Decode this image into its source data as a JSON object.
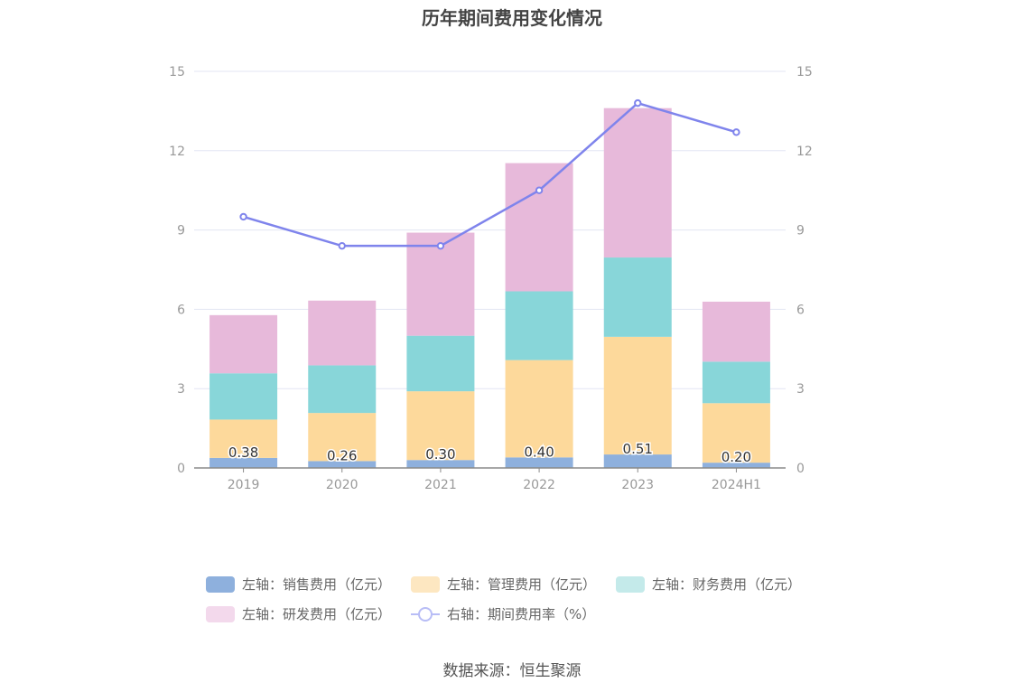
{
  "title": "历年期间费用变化情况",
  "source": "数据来源：恒生聚源",
  "legend": [
    {
      "label": "左轴：销售费用（亿元）",
      "color": "#8eb0dd",
      "kind": "bar"
    },
    {
      "label": "左轴：管理费用（亿元）",
      "color": "#fde7c1",
      "kind": "bar"
    },
    {
      "label": "左轴：财务费用（亿元）",
      "color": "#c4eaea",
      "kind": "bar"
    },
    {
      "label": "左轴：研发费用（亿元）",
      "color": "#f3d9ec",
      "kind": "bar"
    },
    {
      "label": "右轴：期间费用率（%）",
      "color": "#b8bdf6",
      "kind": "line"
    }
  ],
  "chart_data": {
    "type": "bar",
    "stacked": true,
    "categories": [
      "2019",
      "2020",
      "2021",
      "2022",
      "2023",
      "2024H1"
    ],
    "series": [
      {
        "name": "左轴：销售费用（亿元）",
        "color": "#8eb0dd",
        "axis": "left",
        "values": [
          0.38,
          0.26,
          0.3,
          0.4,
          0.51,
          0.2
        ],
        "labels": [
          "0.38",
          "0.26",
          "0.30",
          "0.40",
          "0.51",
          "0.20"
        ]
      },
      {
        "name": "左轴：管理费用（亿元）",
        "color": "#fdd99b",
        "axis": "left",
        "values": [
          1.45,
          1.82,
          2.6,
          3.68,
          4.45,
          2.25
        ]
      },
      {
        "name": "左轴：财务费用（亿元）",
        "color": "#88d6d9",
        "axis": "left",
        "values": [
          1.75,
          1.8,
          2.1,
          2.6,
          3.0,
          1.57
        ]
      },
      {
        "name": "左轴：研发费用（亿元）",
        "color": "#e7b9da",
        "axis": "left",
        "values": [
          2.2,
          2.45,
          3.9,
          4.85,
          5.65,
          2.27
        ]
      },
      {
        "name": "右轴：期间费用率（%）",
        "color": "#7f84ec",
        "axis": "right",
        "type": "line",
        "values": [
          9.5,
          8.4,
          8.4,
          10.5,
          13.8,
          12.7
        ]
      }
    ],
    "y_left": {
      "min": 0,
      "max": 15,
      "ticks": [
        "0",
        "3",
        "6",
        "9",
        "12",
        "15"
      ]
    },
    "y_right": {
      "min": 0,
      "max": 15,
      "ticks": [
        "0",
        "3",
        "6",
        "9",
        "12",
        "15"
      ]
    },
    "grid": true,
    "legend_position": "bottom"
  }
}
